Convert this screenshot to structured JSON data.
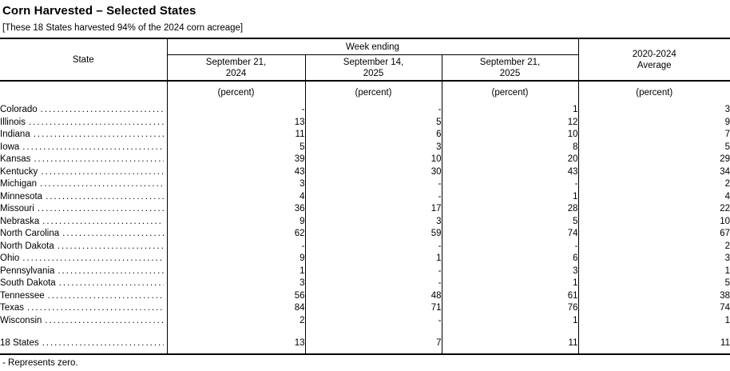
{
  "title": "Corn Harvested – Selected States",
  "subtitle": "[These 18 States harvested 94% of the 2024 corn acreage]",
  "table": {
    "header": {
      "state_label": "State",
      "week_ending_label": "Week ending",
      "columns": [
        {
          "line1": "September 21,",
          "line2": "2024"
        },
        {
          "line1": "September 14,",
          "line2": "2025"
        },
        {
          "line1": "September 21,",
          "line2": "2025"
        }
      ],
      "average": {
        "line1": "2020-2024",
        "line2": "Average"
      },
      "unit": "(percent)"
    },
    "rows": [
      {
        "state": "Colorado",
        "values": [
          "-",
          "-",
          "1",
          "3"
        ]
      },
      {
        "state": "Illinois",
        "values": [
          "13",
          "5",
          "12",
          "9"
        ]
      },
      {
        "state": "Indiana",
        "values": [
          "11",
          "6",
          "10",
          "7"
        ]
      },
      {
        "state": "Iowa",
        "values": [
          "5",
          "3",
          "8",
          "5"
        ]
      },
      {
        "state": "Kansas",
        "values": [
          "39",
          "10",
          "20",
          "29"
        ]
      },
      {
        "state": "Kentucky",
        "values": [
          "43",
          "30",
          "43",
          "34"
        ]
      },
      {
        "state": "Michigan",
        "values": [
          "3",
          "-",
          "-",
          "2"
        ]
      },
      {
        "state": "Minnesota",
        "values": [
          "4",
          "-",
          "1",
          "4"
        ]
      },
      {
        "state": "Missouri",
        "values": [
          "36",
          "17",
          "28",
          "22"
        ]
      },
      {
        "state": "Nebraska",
        "values": [
          "9",
          "3",
          "5",
          "10"
        ]
      },
      {
        "state": "North Carolina",
        "values": [
          "62",
          "59",
          "74",
          "67"
        ]
      },
      {
        "state": "North Dakota",
        "values": [
          "-",
          "-",
          "-",
          "2"
        ]
      },
      {
        "state": "Ohio",
        "values": [
          "9",
          "1",
          "6",
          "3"
        ]
      },
      {
        "state": "Pennsylvania",
        "values": [
          "1",
          "-",
          "3",
          "1"
        ]
      },
      {
        "state": "South Dakota",
        "values": [
          "3",
          "-",
          "1",
          "5"
        ]
      },
      {
        "state": "Tennessee",
        "values": [
          "56",
          "48",
          "61",
          "38"
        ]
      },
      {
        "state": "Texas",
        "values": [
          "84",
          "71",
          "76",
          "74"
        ]
      },
      {
        "state": "Wisconsin",
        "values": [
          "2",
          "-",
          "1",
          "1"
        ]
      }
    ],
    "total_row": {
      "state": "18 States",
      "values": [
        "13",
        "7",
        "11",
        "11"
      ]
    }
  },
  "footnote": "- Represents zero."
}
